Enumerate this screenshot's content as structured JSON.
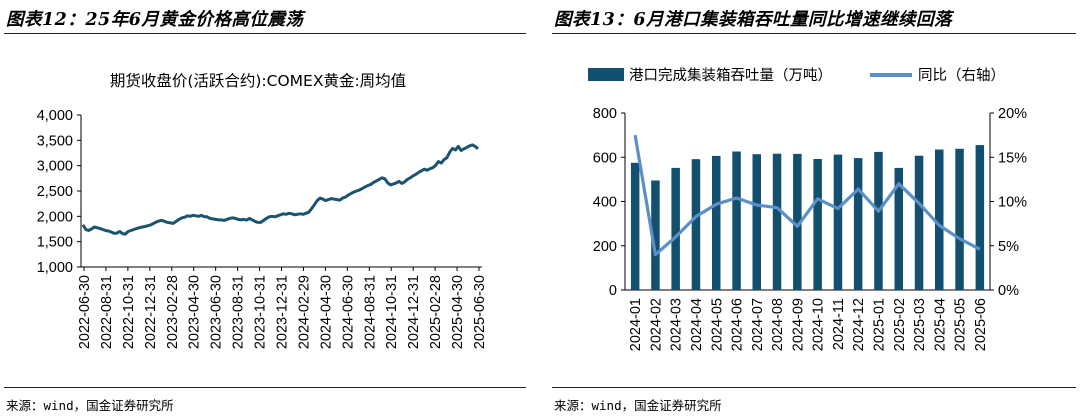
{
  "left_panel": {
    "figure_title": "图表12：25年6月黄金价格高位震荡",
    "source": "来源：wind，国金证券研究所"
  },
  "right_panel": {
    "figure_title": "图表13：6月港口集装箱吞吐量同比增速继续回落",
    "source": "来源：wind，国金证券研究所"
  },
  "colors": {
    "line_left": "#1b5470",
    "bar": "#134f6e",
    "line_right": "#5b8fc8",
    "rule": "#1f1f1f"
  },
  "chart_data": [
    {
      "type": "line",
      "title": "期货收盘价(活跃合约):COMEX黄金:周均值",
      "xlabel": "",
      "ylabel": "",
      "ylim": [
        1000,
        4000
      ],
      "yticks": [
        "1,000",
        "1,500",
        "2,000",
        "2,500",
        "3,000",
        "3,500",
        "4,000"
      ],
      "xticks": [
        "2022-06-30",
        "2022-08-31",
        "2022-10-31",
        "2022-12-31",
        "2023-02-28",
        "2023-04-30",
        "2023-06-30",
        "2023-08-31",
        "2023-10-31",
        "2023-12-31",
        "2024-02-29",
        "2024-04-30",
        "2024-06-30",
        "2024-08-31",
        "2024-10-31",
        "2024-12-31",
        "2025-02-28",
        "2025-04-30",
        "2025-06-30"
      ],
      "grid": false,
      "legend": "none",
      "series": [
        {
          "values": [
            1830,
            1740,
            1720,
            1750,
            1790,
            1775,
            1760,
            1740,
            1720,
            1710,
            1690,
            1665,
            1670,
            1700,
            1660,
            1650,
            1700,
            1720,
            1740,
            1760,
            1775,
            1790,
            1800,
            1815,
            1830,
            1860,
            1890,
            1910,
            1920,
            1900,
            1880,
            1870,
            1860,
            1900,
            1940,
            1970,
            1980,
            2010,
            2000,
            2020,
            2010,
            2000,
            2020,
            1990,
            1990,
            1960,
            1950,
            1940,
            1930,
            1930,
            1920,
            1940,
            1960,
            1970,
            1960,
            1940,
            1930,
            1940,
            1925,
            1960,
            1930,
            1900,
            1880,
            1880,
            1920,
            1960,
            1990,
            2000,
            1990,
            2010,
            2030,
            2050,
            2040,
            2060,
            2050,
            2030,
            2040,
            2050,
            2040,
            2060,
            2080,
            2150,
            2230,
            2310,
            2360,
            2340,
            2310,
            2330,
            2350,
            2340,
            2330,
            2320,
            2360,
            2380,
            2420,
            2450,
            2480,
            2500,
            2520,
            2550,
            2580,
            2610,
            2630,
            2670,
            2700,
            2730,
            2760,
            2740,
            2660,
            2620,
            2640,
            2660,
            2690,
            2650,
            2680,
            2730,
            2760,
            2800,
            2830,
            2870,
            2900,
            2930,
            2910,
            2940,
            2960,
            3010,
            3080,
            3050,
            3120,
            3160,
            3270,
            3340,
            3310,
            3380,
            3300,
            3330,
            3360,
            3390,
            3410,
            3380,
            3330
          ]
        }
      ]
    },
    {
      "type": "bar",
      "title": "",
      "categories": [
        "2024-01",
        "2024-02",
        "2024-03",
        "2024-04",
        "2024-05",
        "2024-06",
        "2024-07",
        "2024-08",
        "2024-09",
        "2024-10",
        "2024-11",
        "2024-12",
        "2025-01",
        "2025-02",
        "2025-03",
        "2025-04",
        "2025-05",
        "2025-06"
      ],
      "ylim": [
        0,
        800
      ],
      "yticks": [
        "0",
        "200",
        "400",
        "600",
        "800"
      ],
      "y2lim": [
        0,
        20
      ],
      "y2ticks": [
        "0%",
        "5%",
        "10%",
        "15%",
        "20%"
      ],
      "grid": false,
      "legend": "top",
      "series": [
        {
          "name": "港口完成集装箱吞吐量（万吨）",
          "type": "bar",
          "axis": "left",
          "values": [
            575,
            495,
            552,
            591,
            606,
            626,
            614,
            616,
            615,
            592,
            612,
            596,
            624,
            552,
            607,
            635,
            638,
            655
          ]
        },
        {
          "name": "同比（右轴）",
          "type": "line",
          "axis": "right",
          "values": [
            17.5,
            4.0,
            6.0,
            8.3,
            9.7,
            10.4,
            9.6,
            9.3,
            7.2,
            10.3,
            9.2,
            11.4,
            8.9,
            12.0,
            9.8,
            7.3,
            5.8,
            4.6
          ]
        }
      ]
    }
  ]
}
